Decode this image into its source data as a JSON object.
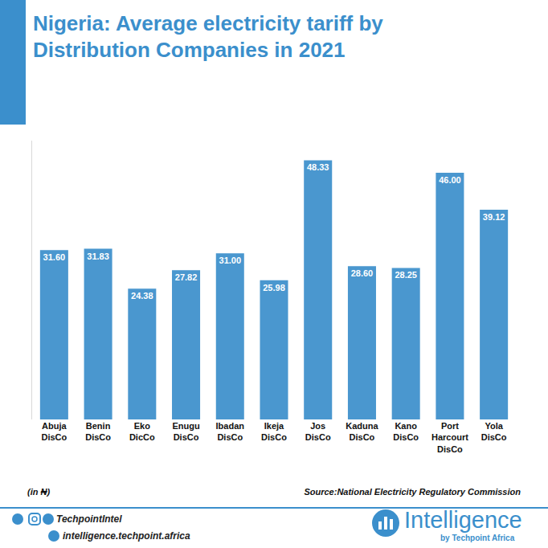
{
  "chart_data": {
    "type": "bar",
    "title": "Nigeria: Average electricity tariff by Distribution Companies in 2021",
    "categories": [
      "Abuja DisCo",
      "Benin DisCo",
      "Eko DicCo",
      "Enugu DisCo",
      "Ibadan DisCo",
      "Ikeja DisCo",
      "Jos DisCo",
      "Kaduna DisCo",
      "Kano DisCo",
      "Port Harcourt DisCo",
      "Yola DisCo"
    ],
    "values": [
      31.6,
      31.83,
      24.38,
      27.82,
      31.0,
      25.98,
      48.33,
      28.6,
      28.25,
      46.0,
      39.12
    ],
    "value_labels": [
      "31.60",
      "31.83",
      "24.38",
      "27.82",
      "31.00",
      "25.98",
      "48.33",
      "28.60",
      "28.25",
      "46.00",
      "39.12"
    ],
    "color": "#4a97cf",
    "ylim": [
      0,
      52
    ],
    "data_labels": true,
    "tick_labels": "x",
    "grid": false
  },
  "footer": {
    "unit_note": "(in ₦)",
    "source": "Source:National Electricity Regulatory Commission",
    "social_handle": "TechpointIntel",
    "website": "intelligence.techpoint.africa",
    "brand": "Intelligence",
    "brand_sub": "by Techpoint Africa"
  }
}
